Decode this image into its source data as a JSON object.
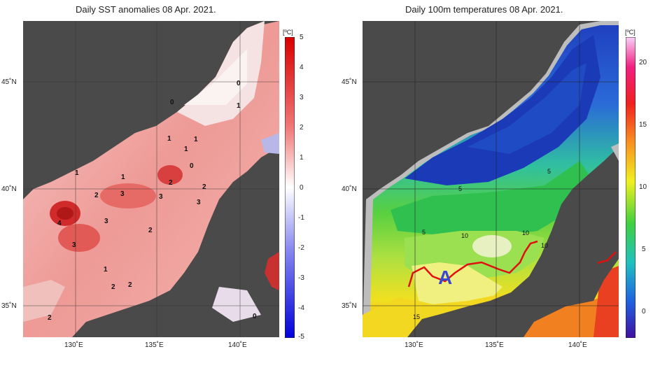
{
  "left_panel": {
    "title": "Daily SST anomalies 08 Apr. 2021.",
    "unit": "[ºC]",
    "colorbar_ticks": [
      "5",
      "4",
      "3",
      "2",
      "1",
      "0",
      "-1",
      "-2",
      "-3",
      "-4",
      "-5"
    ],
    "lat_labels": [
      "45˚N",
      "40˚N",
      "35˚N"
    ],
    "lon_labels": [
      "130˚E",
      "135˚E",
      "140˚E"
    ],
    "contour_labels": [
      "0",
      "1",
      "0",
      "1",
      "1",
      "1",
      "0",
      "1",
      "2",
      "2",
      "1",
      "3",
      "2",
      "3",
      "3",
      "4",
      "3",
      "2",
      "3",
      "1",
      "2",
      "2",
      "2",
      "0"
    ]
  },
  "right_panel": {
    "title": "Daily 100m temperatures 08 Apr. 2021.",
    "unit": "[ºC]",
    "colorbar_ticks": [
      "20",
      "15",
      "10",
      "5",
      "0"
    ],
    "lat_labels": [
      "45˚N",
      "40˚N",
      "35˚N"
    ],
    "lon_labels": [
      "130˚E",
      "135˚E",
      "140˚E"
    ],
    "contour_labels": [
      "5",
      "5",
      "5",
      "10",
      "10",
      "10",
      "15"
    ],
    "marker_label": "A"
  },
  "colors": {
    "land": "#4a4a4a",
    "shelf": "#bdbdbd",
    "warm_anomaly": "#e8706e",
    "current_path": "#e01010",
    "marker": "#3a4ad0"
  }
}
